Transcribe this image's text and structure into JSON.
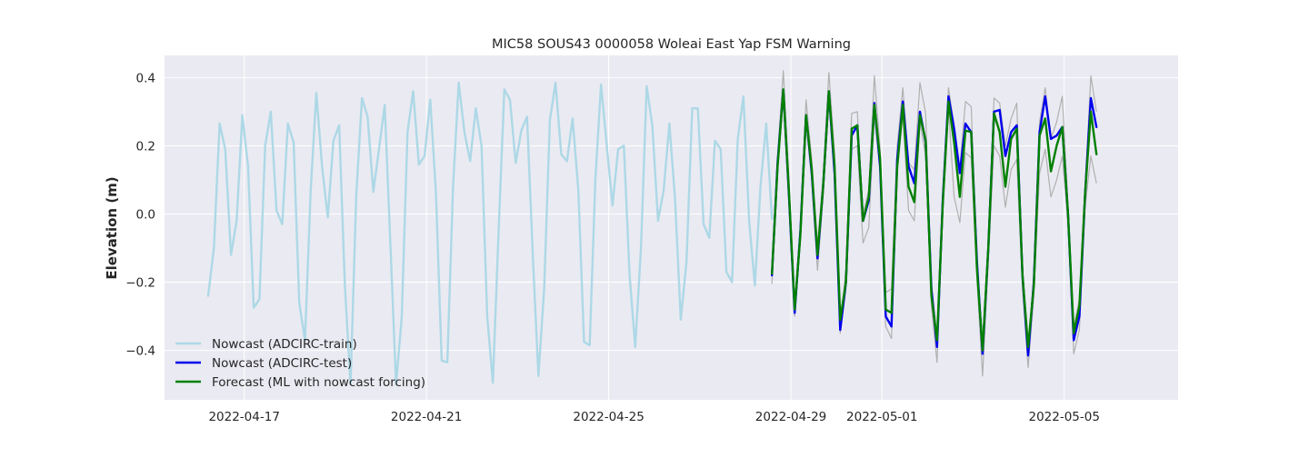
{
  "chart_data": {
    "type": "line",
    "title": "MIC58 SOUS43 0000058 Woleai East Yap FSM Warning",
    "xlabel": "",
    "ylabel": "Elevation (m)",
    "xlim": [
      "2022-04-15T06:00",
      "2022-05-07T12:00"
    ],
    "ylim": [
      -0.545,
      0.465
    ],
    "grid": true,
    "x_ticks": [
      "2022-04-17",
      "2022-04-21",
      "2022-04-25",
      "2022-04-29",
      "2022-05-01",
      "2022-05-05"
    ],
    "y_ticks": [
      -0.4,
      -0.2,
      0.0,
      0.2,
      0.4
    ],
    "y_tick_labels": [
      "−0.4",
      "−0.2",
      "0.0",
      "0.2",
      "0.4"
    ],
    "legend_position": "lower-left",
    "colors": {
      "background": "#eaeaf2",
      "grid": "#ffffff",
      "train": "#add8e6",
      "test": "#0000ee",
      "forecast": "#008000",
      "ensemble": "#b0b0b0"
    },
    "series": [
      {
        "name": "Nowcast (ADCIRC-train)",
        "role": "train",
        "start": "2022-04-16T05:00",
        "interval_hours": 3,
        "values": [
          -0.24,
          -0.1,
          0.265,
          0.19,
          -0.12,
          -0.02,
          0.29,
          0.14,
          -0.275,
          -0.25,
          0.2,
          0.3,
          0.01,
          -0.03,
          0.265,
          0.21,
          -0.26,
          -0.37,
          0.07,
          0.355,
          0.14,
          -0.01,
          0.215,
          0.26,
          -0.21,
          -0.5,
          0.055,
          0.34,
          0.285,
          0.065,
          0.19,
          0.32,
          -0.09,
          -0.5,
          -0.3,
          0.24,
          0.36,
          0.145,
          0.17,
          0.335,
          0.06,
          -0.43,
          -0.435,
          0.08,
          0.385,
          0.24,
          0.155,
          0.31,
          0.2,
          -0.3,
          -0.495,
          -0.05,
          0.365,
          0.335,
          0.15,
          0.245,
          0.285,
          -0.12,
          -0.475,
          -0.22,
          0.275,
          0.385,
          0.175,
          0.155,
          0.28,
          0.07,
          -0.375,
          -0.385,
          0.105,
          0.38,
          0.2,
          0.025,
          0.19,
          0.2,
          -0.18,
          -0.39,
          -0.1,
          0.375,
          0.26,
          -0.02,
          0.07,
          0.265,
          0.04,
          -0.31,
          -0.14,
          0.31,
          0.31,
          -0.03,
          -0.07,
          0.215,
          0.19,
          -0.17,
          -0.2,
          0.22,
          0.345,
          -0.02,
          -0.21,
          0.08,
          0.265,
          -0.015
        ]
      },
      {
        "name": "Nowcast (ADCIRC-test)",
        "role": "test",
        "start": "2022-04-28T14:00",
        "interval_hours": 3,
        "values": [
          -0.18,
          0.15,
          0.365,
          0.05,
          -0.29,
          -0.05,
          0.29,
          0.12,
          -0.13,
          0.08,
          0.36,
          0.12,
          -0.34,
          -0.2,
          0.23,
          0.26,
          -0.02,
          0.04,
          0.325,
          0.14,
          -0.3,
          -0.33,
          0.16,
          0.33,
          0.14,
          0.09,
          0.3,
          0.21,
          -0.22,
          -0.39,
          0.04,
          0.345,
          0.25,
          0.12,
          0.265,
          0.24,
          -0.14,
          -0.41,
          -0.1,
          0.3,
          0.305,
          0.17,
          0.24,
          0.26,
          -0.18,
          -0.415,
          -0.2,
          0.24,
          0.345,
          0.22,
          0.23,
          0.255,
          0.0,
          -0.37,
          -0.3,
          0.06,
          0.34,
          0.255
        ]
      },
      {
        "name": "Forecast (ML with nowcast forcing)",
        "role": "forecast",
        "start": "2022-04-28T14:00",
        "interval_hours": 3,
        "values": [
          -0.175,
          0.14,
          0.365,
          0.06,
          -0.28,
          -0.06,
          0.29,
          0.13,
          -0.12,
          0.08,
          0.36,
          0.14,
          -0.31,
          -0.2,
          0.25,
          0.26,
          -0.02,
          0.05,
          0.32,
          0.16,
          -0.28,
          -0.29,
          0.14,
          0.32,
          0.08,
          0.035,
          0.29,
          0.215,
          -0.24,
          -0.37,
          0.03,
          0.33,
          0.21,
          0.05,
          0.245,
          0.24,
          -0.16,
          -0.4,
          -0.1,
          0.295,
          0.24,
          0.08,
          0.22,
          0.25,
          -0.18,
          -0.39,
          -0.21,
          0.23,
          0.28,
          0.125,
          0.2,
          0.255,
          0.0,
          -0.35,
          -0.27,
          0.06,
          0.3,
          0.175
        ]
      }
    ],
    "ensemble": {
      "start": "2022-04-28T14:00",
      "interval_hours": 3,
      "upper": [
        -0.16,
        0.17,
        0.42,
        0.1,
        -0.27,
        -0.03,
        0.335,
        0.16,
        -0.09,
        0.11,
        0.415,
        0.18,
        -0.33,
        -0.16,
        0.295,
        0.3,
        0.0,
        0.07,
        0.405,
        0.19,
        -0.23,
        -0.22,
        0.2,
        0.37,
        0.15,
        0.13,
        0.385,
        0.295,
        -0.2,
        -0.36,
        0.06,
        0.37,
        0.26,
        0.135,
        0.33,
        0.315,
        -0.13,
        -0.39,
        -0.08,
        0.34,
        0.325,
        0.2,
        0.28,
        0.325,
        -0.15,
        -0.39,
        -0.18,
        0.27,
        0.37,
        0.22,
        0.27,
        0.345,
        0.02,
        -0.33,
        -0.25,
        0.08,
        0.405,
        0.3
      ],
      "lower": [
        -0.205,
        0.12,
        0.34,
        0.02,
        -0.3,
        -0.08,
        0.27,
        0.1,
        -0.165,
        0.05,
        0.33,
        0.1,
        -0.35,
        -0.22,
        0.19,
        0.2,
        -0.085,
        -0.04,
        0.29,
        0.12,
        -0.33,
        -0.365,
        0.12,
        0.29,
        0.01,
        -0.02,
        0.27,
        0.17,
        -0.27,
        -0.435,
        0.0,
        0.31,
        0.05,
        -0.025,
        0.18,
        0.165,
        -0.19,
        -0.475,
        -0.14,
        0.2,
        0.17,
        0.02,
        0.13,
        0.16,
        -0.22,
        -0.45,
        -0.24,
        0.12,
        0.19,
        0.05,
        0.1,
        0.17,
        -0.03,
        -0.41,
        -0.34,
        0.02,
        0.17,
        0.09
      ]
    }
  }
}
